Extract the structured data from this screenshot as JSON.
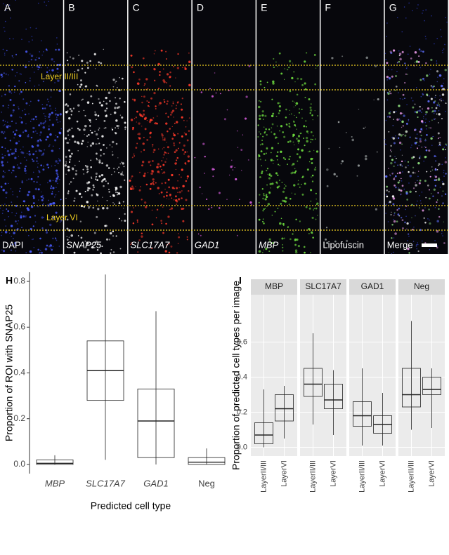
{
  "images": {
    "panels": [
      {
        "letter": "A",
        "label": "DAPI",
        "italic": false,
        "color": "#4a5cff"
      },
      {
        "letter": "B",
        "label": "SNAP25",
        "italic": true,
        "color": "#ffffff"
      },
      {
        "letter": "C",
        "label": "SLC17A7",
        "italic": true,
        "color": "#ff3a2a"
      },
      {
        "letter": "D",
        "label": "GAD1",
        "italic": true,
        "color": "#e060e8"
      },
      {
        "letter": "E",
        "label": "MBP",
        "italic": true,
        "color": "#70e040"
      },
      {
        "letter": "F",
        "label": "Lipofuscin",
        "italic": false,
        "color": "#9aa0a0"
      },
      {
        "letter": "G",
        "label": "Merge",
        "italic": false,
        "color": "#f0c8f0"
      }
    ],
    "layers": [
      "Layer II/III",
      "Layer VI"
    ]
  },
  "chart_data": [
    {
      "type": "box",
      "panel": "H",
      "ylabel": "Proportion of ROI with SNAP25",
      "xlabel": "Predicted cell type",
      "categories": [
        "MBP",
        "SLC17A7",
        "GAD1",
        "Neg"
      ],
      "italic_categories": [
        true,
        true,
        true,
        false
      ],
      "min": [
        0,
        0.02,
        0,
        0
      ],
      "q1": [
        0,
        0.28,
        0.03,
        0
      ],
      "median": [
        0.005,
        0.41,
        0.19,
        0.01
      ],
      "q3": [
        0.02,
        0.54,
        0.33,
        0.03
      ],
      "max": [
        0.04,
        0.83,
        0.67,
        0.07
      ],
      "ylim": [
        -0.04,
        0.84
      ],
      "yticks": [
        {
          "value": 0,
          "label": "0.0"
        },
        0.2,
        0.4,
        0.6,
        0.8
      ]
    },
    {
      "type": "facet-box",
      "panel": "I",
      "ylabel": "Proportion of predicted cell types per image",
      "categories": [
        "LayerII/III",
        "LayerVI"
      ],
      "series": [
        {
          "name": "MBP",
          "min": [
            0,
            0.05
          ],
          "q1": [
            0.02,
            0.15
          ],
          "median": [
            0.07,
            0.22
          ],
          "q3": [
            0.14,
            0.3
          ],
          "max": [
            0.33,
            0.35
          ]
        },
        {
          "name": "SLC17A7",
          "min": [
            0.13,
            0.07
          ],
          "q1": [
            0.29,
            0.22
          ],
          "median": [
            0.36,
            0.27
          ],
          "q3": [
            0.45,
            0.36
          ],
          "max": [
            0.65,
            0.44
          ]
        },
        {
          "name": "GAD1",
          "min": [
            0.01,
            0.01
          ],
          "q1": [
            0.12,
            0.08
          ],
          "median": [
            0.18,
            0.13
          ],
          "q3": [
            0.26,
            0.18
          ],
          "max": [
            0.45,
            0.31
          ]
        },
        {
          "name": "Neg",
          "min": [
            0.1,
            0.11
          ],
          "q1": [
            0.23,
            0.3
          ],
          "median": [
            0.3,
            0.33
          ],
          "q3": [
            0.45,
            0.4
          ],
          "max": [
            0.72,
            0.45
          ]
        }
      ],
      "ylim": [
        -0.05,
        0.87
      ],
      "yticks": [
        {
          "value": 0,
          "label": "0.0"
        },
        0.2,
        0.4,
        0.6
      ],
      "grid": true
    }
  ]
}
